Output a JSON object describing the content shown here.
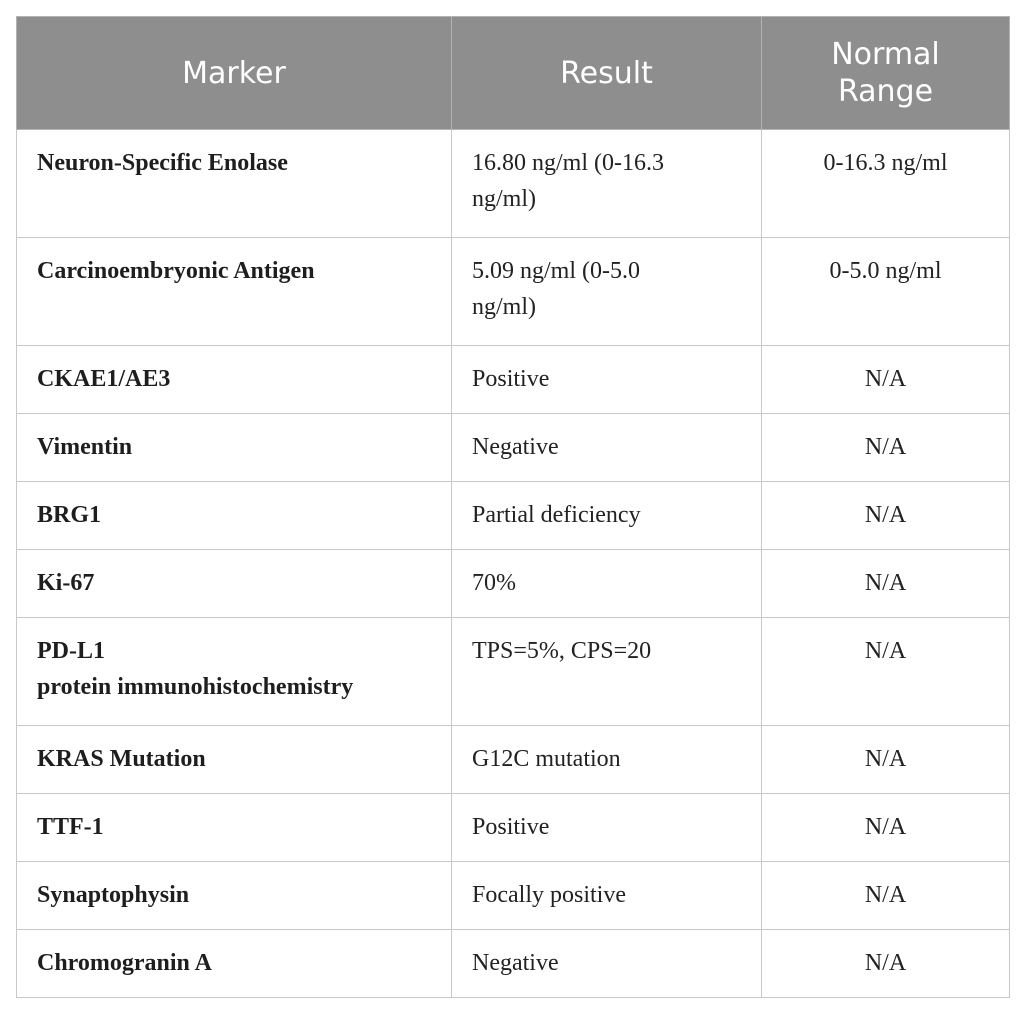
{
  "headers": {
    "marker": "Marker",
    "result": "Result",
    "normal_range": "Normal Range"
  },
  "rows": [
    {
      "marker": "Neuron-Specific Enolase",
      "result": "16.80 ng/ml (0-16.3 ng/ml)",
      "range": "0-16.3 ng/ml"
    },
    {
      "marker": "Carcinoembryonic Antigen",
      "result": "5.09 ng/ml (0-5.0 ng/ml)",
      "range": "0-5.0 ng/ml"
    },
    {
      "marker": "CKAE1/AE3",
      "result": "Positive",
      "range": "N/A"
    },
    {
      "marker": "Vimentin",
      "result": "Negative",
      "range": "N/A"
    },
    {
      "marker": "BRG1",
      "result": "Partial deficiency",
      "range": "N/A"
    },
    {
      "marker": "Ki-67",
      "result": "70%",
      "range": "N/A"
    },
    {
      "marker": "PD-L1",
      "marker_line2": "protein immunohistochemistry",
      "result": "TPS=5%, CPS=20",
      "range": "N/A"
    },
    {
      "marker": "KRAS Mutation",
      "result": "G12C mutation",
      "range": "N/A"
    },
    {
      "marker": "TTF-1",
      "result": "Positive",
      "range": "N/A"
    },
    {
      "marker": "Synaptophysin",
      "result": "Focally positive",
      "range": "N/A"
    },
    {
      "marker": "Chromogranin A",
      "result": "Negative",
      "range": "N/A"
    }
  ]
}
